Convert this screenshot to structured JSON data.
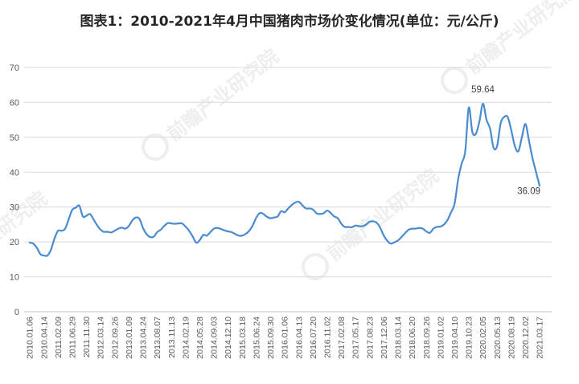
{
  "watermark": {
    "text": "前瞻产业研究院"
  },
  "colors": {
    "line": "#4a8bd0",
    "grid": "#d9d9d9",
    "axis": "#bfbfbf",
    "tick_text": "#595959",
    "title": "#262626"
  },
  "chart_data": {
    "type": "line",
    "title": "图表1：2010-2021年4月中国猪肉市场价变化情况(单位：元/公斤)",
    "ylim": [
      0,
      70
    ],
    "y_ticks": [
      0,
      10,
      20,
      30,
      40,
      50,
      60,
      70
    ],
    "grid": true,
    "legend": "none",
    "x_tick_labels": [
      "2010.01.06",
      "2010.04.14",
      "2011.02.09",
      "2011.06.29",
      "2011.11.30",
      "2012.03.14",
      "2012.09.26",
      "2013.01.09",
      "2013.04.24",
      "2013.08.07",
      "2013.11.13",
      "2014.02.19",
      "2014.05.28",
      "2014.09.03",
      "2014.12.10",
      "2015.03.18",
      "2015.06.24",
      "2015.09.30",
      "2016.01.06",
      "2016.04.13",
      "2016.07.20",
      "2016.11.02",
      "2017.02.08",
      "2017.05.17",
      "2017.08.23",
      "2017.12.06",
      "2018.03.14",
      "2018.06.20",
      "2018.09.26",
      "2019.01.02",
      "2019.04.10",
      "2019.10.23",
      "2020.02.05",
      "2020.05.13",
      "2020.08.19",
      "2020.12.02",
      "2021.03.17"
    ],
    "series": [
      {
        "values": [
          19.8,
          19.5,
          18.3,
          16.5,
          16.1,
          16.1,
          17.8,
          21.0,
          23.2,
          23.2,
          23.8,
          26.5,
          29.2,
          29.8,
          30.4,
          27.3,
          27.5,
          28.0,
          26.5,
          24.8,
          23.5,
          22.9,
          22.9,
          22.7,
          23.2,
          23.8,
          24.1,
          23.8,
          24.6,
          26.2,
          27.0,
          26.6,
          24.0,
          22.2,
          21.4,
          21.5,
          22.8,
          23.5,
          24.6,
          25.4,
          25.3,
          25.2,
          25.3,
          25.3,
          24.4,
          23.2,
          21.6,
          19.8,
          20.5,
          22.0,
          21.8,
          22.8,
          23.8,
          24.0,
          23.7,
          23.3,
          23.0,
          22.8,
          22.3,
          21.8,
          21.8,
          22.3,
          23.2,
          24.8,
          27.0,
          28.3,
          28.0,
          27.2,
          26.8,
          27.0,
          27.3,
          28.8,
          28.5,
          29.6,
          30.6,
          31.3,
          31.5,
          30.5,
          29.6,
          29.6,
          29.3,
          28.2,
          28.0,
          28.2,
          29.0,
          28.3,
          27.3,
          26.8,
          25.2,
          24.3,
          24.3,
          24.2,
          24.7,
          24.5,
          24.5,
          25.0,
          25.8,
          25.9,
          25.5,
          24.0,
          21.8,
          20.3,
          19.5,
          19.9,
          20.4,
          21.4,
          22.5,
          23.5,
          23.8,
          23.8,
          24.0,
          23.8,
          23.0,
          22.6,
          23.8,
          24.3,
          24.4,
          25.0,
          26.3,
          28.5,
          31.0,
          38.0,
          42.5,
          46.0,
          58.5,
          51.5,
          51.0,
          54.5,
          59.64,
          55.0,
          52.5,
          47.0,
          47.5,
          54.0,
          55.8,
          55.8,
          52.0,
          47.5,
          46.0,
          50.0,
          53.8,
          49.0,
          44.0,
          40.0,
          36.09
        ]
      }
    ],
    "data_labels": [
      {
        "text": "59.64"
      },
      {
        "text": "36.09"
      }
    ]
  }
}
